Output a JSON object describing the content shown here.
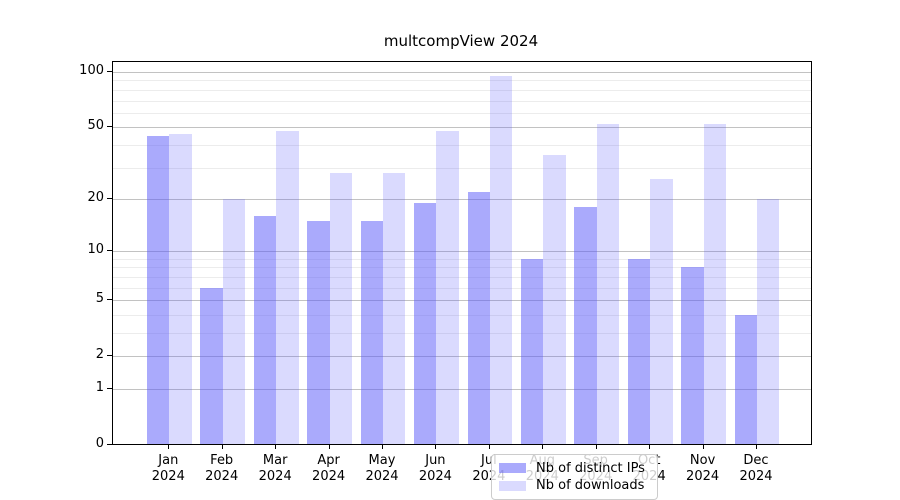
{
  "title": "multcompView 2024",
  "chart_data": {
    "type": "bar",
    "title": "multcompView 2024",
    "categories": [
      "Jan 2024",
      "Feb 2024",
      "Mar 2024",
      "Apr 2024",
      "May 2024",
      "Jun 2024",
      "Jul 2024",
      "Aug 2024",
      "Sep 2024",
      "Oct 2024",
      "Nov 2024",
      "Dec 2024"
    ],
    "series": [
      {
        "name": "Nb of distinct IPs",
        "color": "rgba(85,85,250,0.5)",
        "values": [
          45,
          6,
          16,
          15,
          15,
          19,
          22,
          9,
          18,
          9,
          8,
          4
        ]
      },
      {
        "name": "Nb of downloads",
        "color": "rgba(85,85,250,0.22)",
        "values": [
          46,
          20,
          48,
          28,
          28,
          48,
          95,
          35,
          52,
          26,
          52,
          20
        ]
      }
    ],
    "yscale": "log1p",
    "y_ticks": [
      0,
      1,
      2,
      5,
      10,
      20,
      50,
      100
    ],
    "y_minor_ticks": [
      3,
      4,
      6,
      7,
      8,
      9,
      30,
      40,
      60,
      70,
      80,
      90
    ],
    "ylim": [
      0,
      116
    ],
    "xlabel": "",
    "ylabel": "",
    "grid": true,
    "legend_position": "lower center"
  },
  "x_axis": {
    "months": [
      "Jan",
      "Feb",
      "Mar",
      "Apr",
      "May",
      "Jun",
      "Jul",
      "Aug",
      "Sep",
      "Oct",
      "Nov",
      "Dec"
    ],
    "year": "2024"
  },
  "legend": {
    "items": [
      {
        "label": "Nb of distinct IPs"
      },
      {
        "label": "Nb of downloads"
      }
    ]
  },
  "colors": {
    "bar_distinct_ips": "rgba(85,85,250,0.5)",
    "bar_downloads": "rgba(85,85,250,0.22)",
    "grid_major": "#c2c2c2",
    "grid_minor": "#ececec",
    "spine": "#000000",
    "background": "#ffffff"
  }
}
